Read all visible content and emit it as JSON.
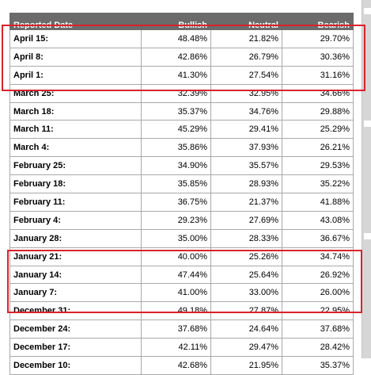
{
  "table": {
    "columns": [
      "Reported Date",
      "Bullish",
      "Neutral",
      "Bearish"
    ],
    "rows": [
      {
        "date": "April 15:",
        "bullish": "48.48%",
        "neutral": "21.82%",
        "bearish": "29.70%"
      },
      {
        "date": "April 8:",
        "bullish": "42.86%",
        "neutral": "26.79%",
        "bearish": "30.36%"
      },
      {
        "date": "April 1:",
        "bullish": "41.30%",
        "neutral": "27.54%",
        "bearish": "31.16%"
      },
      {
        "date": "March 25:",
        "bullish": "32.39%",
        "neutral": "32.95%",
        "bearish": "34.66%"
      },
      {
        "date": "March 18:",
        "bullish": "35.37%",
        "neutral": "34.76%",
        "bearish": "29.88%"
      },
      {
        "date": "March 11:",
        "bullish": "45.29%",
        "neutral": "29.41%",
        "bearish": "25.29%"
      },
      {
        "date": "March 4:",
        "bullish": "35.86%",
        "neutral": "37.93%",
        "bearish": "26.21%"
      },
      {
        "date": "February 25:",
        "bullish": "34.90%",
        "neutral": "35.57%",
        "bearish": "29.53%"
      },
      {
        "date": "February 18:",
        "bullish": "35.85%",
        "neutral": "28.93%",
        "bearish": "35.22%"
      },
      {
        "date": "February 11:",
        "bullish": "36.75%",
        "neutral": "21.37%",
        "bearish": "41.88%"
      },
      {
        "date": "February 4:",
        "bullish": "29.23%",
        "neutral": "27.69%",
        "bearish": "43.08%"
      },
      {
        "date": "January 28:",
        "bullish": "35.00%",
        "neutral": "28.33%",
        "bearish": "36.67%"
      },
      {
        "date": "January 21:",
        "bullish": "40.00%",
        "neutral": "25.26%",
        "bearish": "34.74%"
      },
      {
        "date": "January 14:",
        "bullish": "47.44%",
        "neutral": "25.64%",
        "bearish": "26.92%"
      },
      {
        "date": "January 7:",
        "bullish": "41.00%",
        "neutral": "33.00%",
        "bearish": "26.00%"
      },
      {
        "date": "December 31:",
        "bullish": "49.18%",
        "neutral": "27.87%",
        "bearish": "22.95%"
      },
      {
        "date": "December 24:",
        "bullish": "37.68%",
        "neutral": "24.64%",
        "bearish": "37.68%"
      },
      {
        "date": "December 17:",
        "bullish": "42.11%",
        "neutral": "29.47%",
        "bearish": "28.42%"
      },
      {
        "date": "December 10:",
        "bullish": "42.68%",
        "neutral": "21.95%",
        "bearish": "35.37%"
      }
    ]
  },
  "annotations": {
    "highlight_color": "#d9232b"
  }
}
